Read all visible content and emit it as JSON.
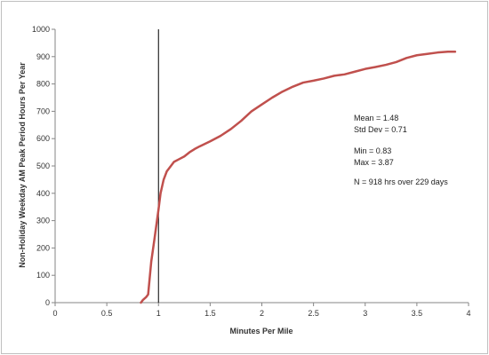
{
  "chart_data": {
    "type": "line",
    "title": "",
    "xlabel": "Minutes Per Mile",
    "ylabel": "Non-Holiday Weekday AM Peak Period Hours Per Year",
    "xlim": [
      0,
      4
    ],
    "ylim": [
      0,
      1000
    ],
    "x_ticks": [
      "0",
      "0.5",
      "1",
      "1.5",
      "2",
      "2.5",
      "3",
      "3.5",
      "4"
    ],
    "y_ticks": [
      "0",
      "100",
      "200",
      "300",
      "400",
      "500",
      "600",
      "700",
      "800",
      "900",
      "1000"
    ],
    "grid": false,
    "legend": "none",
    "reference_line_x": 1,
    "series": [
      {
        "color": "#c0504d",
        "x": [
          0.83,
          0.85,
          0.88,
          0.9,
          0.93,
          0.96,
          1.0,
          1.02,
          1.05,
          1.08,
          1.12,
          1.15,
          1.2,
          1.25,
          1.3,
          1.35,
          1.4,
          1.5,
          1.6,
          1.7,
          1.75,
          1.8,
          1.9,
          2.0,
          2.1,
          2.2,
          2.3,
          2.4,
          2.5,
          2.6,
          2.7,
          2.8,
          2.9,
          3.0,
          3.1,
          3.2,
          3.3,
          3.4,
          3.5,
          3.6,
          3.7,
          3.8,
          3.87
        ],
        "y": [
          0,
          10,
          20,
          30,
          150,
          230,
          340,
          400,
          450,
          480,
          500,
          515,
          525,
          535,
          550,
          562,
          572,
          590,
          610,
          635,
          650,
          665,
          700,
          725,
          750,
          772,
          790,
          805,
          812,
          820,
          830,
          835,
          845,
          855,
          862,
          870,
          880,
          895,
          905,
          910,
          915,
          918,
          918
        ]
      }
    ],
    "annotations": {
      "mean": "Mean = 1.48",
      "std": "Std Dev = 0.71",
      "min": "Min = 0.83",
      "max": "Max = 3.87",
      "n": "N = 918 hrs over 229 days"
    }
  }
}
